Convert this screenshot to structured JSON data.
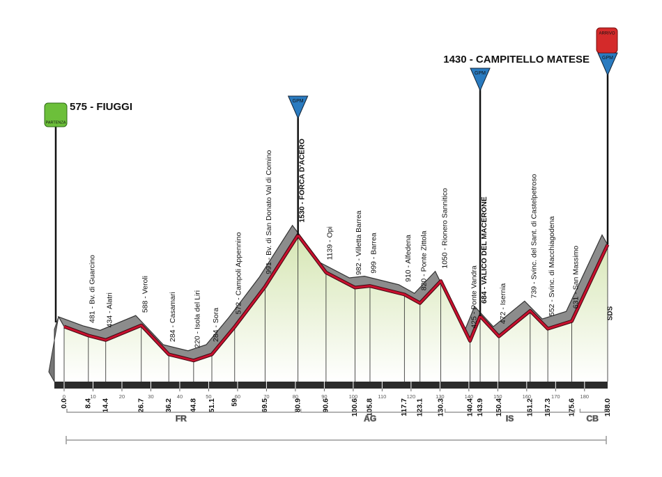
{
  "chart_data": {
    "type": "area",
    "x": [
      0,
      8.4,
      14.4,
      26.7,
      36.2,
      44.8,
      51.1,
      59,
      69.5,
      80.9,
      90.6,
      100.6,
      105.8,
      117.7,
      123.1,
      130.3,
      140.4,
      143.9,
      150.4,
      161.2,
      167.3,
      175.6,
      188
    ],
    "x_labels": [
      "0.0",
      "8.4",
      "14.4",
      "26.7",
      "36.2",
      "44.8",
      "51.1",
      "59",
      "69.5",
      "80.9",
      "90.6",
      "100.6",
      "105.8",
      "117.7",
      "123.1",
      "130.3",
      "140.4",
      "143.9",
      "150.4",
      "161.2",
      "167.3",
      "175.6",
      "188.0"
    ],
    "values": [
      575,
      481,
      434,
      588,
      284,
      220,
      284,
      572,
      991,
      1530,
      1139,
      982,
      999,
      910,
      820,
      1050,
      425,
      684,
      472,
      739,
      552,
      631,
      1430
    ],
    "value_labels": [
      "575 - FIUGGI",
      "481 - Bv. di Guarcino",
      "434 - Alatri",
      "588 - Veroli",
      "284 - Casamari",
      "220 - Isola del Liri",
      "284 - Sora",
      "572 - Campoli Appennino",
      "991 - Bv. di San Donato Val di Comino",
      "1530 - FORCA D'ACERO",
      "1139 - Opi",
      "982 - Villetta Barrea",
      "999 - Barrea",
      "910 - Alfedena",
      "820 - Ponte Zittola",
      "1050 - Rionero Sannitico",
      "425 - Ponte Vandra",
      "684 - VALICO DEL MACERONE",
      "472 - Isernia",
      "739 - Svinc. del Sant. di Castelpetroso",
      "552 - Svinc. di Macchiagodena",
      "631 - San Massimo",
      "1430 - CAMPITELLO MATESE"
    ],
    "xlim": [
      0,
      188
    ],
    "xticks": [
      0,
      10,
      20,
      30,
      40,
      50,
      60,
      70,
      80,
      90,
      100,
      110,
      120,
      130,
      140,
      150,
      160,
      170,
      180
    ],
    "ylim": [
      0,
      1600
    ],
    "gpm_points": [
      9,
      17,
      22
    ],
    "marker_text": {
      "gpm": "GPM",
      "start": "PARTENZA",
      "finish": "ARRIVO"
    },
    "finish_side_label": "SDS",
    "sectors": [
      {
        "name": "FR",
        "start": 0,
        "end": 80.9
      },
      {
        "name": "AG",
        "start": 80.9,
        "end": 130.8
      },
      {
        "name": "IS",
        "start": 130.8,
        "end": 177.5
      },
      {
        "name": "CB",
        "start": 177.5,
        "end": 188
      }
    ],
    "line_color": "#c8102e",
    "ridge_color": "#8c8c8c",
    "gpm_color": "#2a7bc0"
  }
}
